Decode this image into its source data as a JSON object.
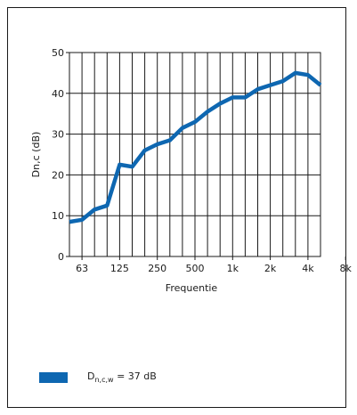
{
  "chart_data": {
    "type": "line",
    "xlabel": "Frequentie",
    "ylabel": "Dn,c (dB)",
    "x_unit": "Hz",
    "ylim": [
      0,
      50
    ],
    "y_ticks": [
      0,
      10,
      20,
      30,
      40,
      50
    ],
    "x_tick_labels": [
      "63",
      "125",
      "250",
      "500",
      "1k",
      "2k",
      "4k",
      "8k"
    ],
    "grid": true,
    "color": "#0e67b1",
    "x": [
      "50",
      "63",
      "80",
      "100",
      "125",
      "160",
      "200",
      "250",
      "315",
      "400",
      "500",
      "630",
      "800",
      "1k",
      "1.25k",
      "1.6k",
      "2k",
      "2.5k",
      "3.15k",
      "4k",
      "5k"
    ],
    "series": [
      {
        "values": [
          8.5,
          9,
          11.5,
          12.5,
          22.5,
          22,
          26,
          27.5,
          28.5,
          31.5,
          33,
          35.5,
          37.5,
          39,
          39,
          41,
          42,
          43,
          45,
          44.5,
          42
        ]
      }
    ],
    "legend": {
      "main": "D",
      "sub": "n,c,w",
      "rest": " = 37 dB",
      "position": "bottom-left"
    }
  }
}
